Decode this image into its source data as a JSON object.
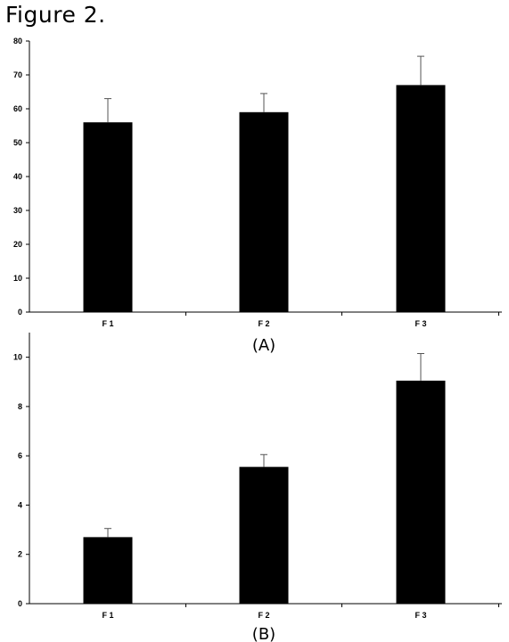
{
  "figure_title": "Figure 2.",
  "chart_data": [
    {
      "type": "bar",
      "panel_label": "(A)",
      "categories": [
        "F 1",
        "F 2",
        "F 3"
      ],
      "values": [
        56,
        59,
        67
      ],
      "errors": [
        7,
        5.5,
        8.5
      ],
      "ylim": [
        0,
        80
      ],
      "yticks": [
        0,
        10,
        20,
        30,
        40,
        50,
        60,
        70,
        80
      ],
      "bar_color": "#000000",
      "grid": false
    },
    {
      "type": "bar",
      "panel_label": "(B)",
      "categories": [
        "F 1",
        "F 2",
        "F 3"
      ],
      "values": [
        2.7,
        5.55,
        9.05
      ],
      "errors": [
        0.35,
        0.5,
        1.1
      ],
      "ylim": [
        0,
        11
      ],
      "yticks": [
        0,
        2,
        4,
        6,
        8,
        10
      ],
      "bar_color": "#000000",
      "grid": false
    }
  ]
}
